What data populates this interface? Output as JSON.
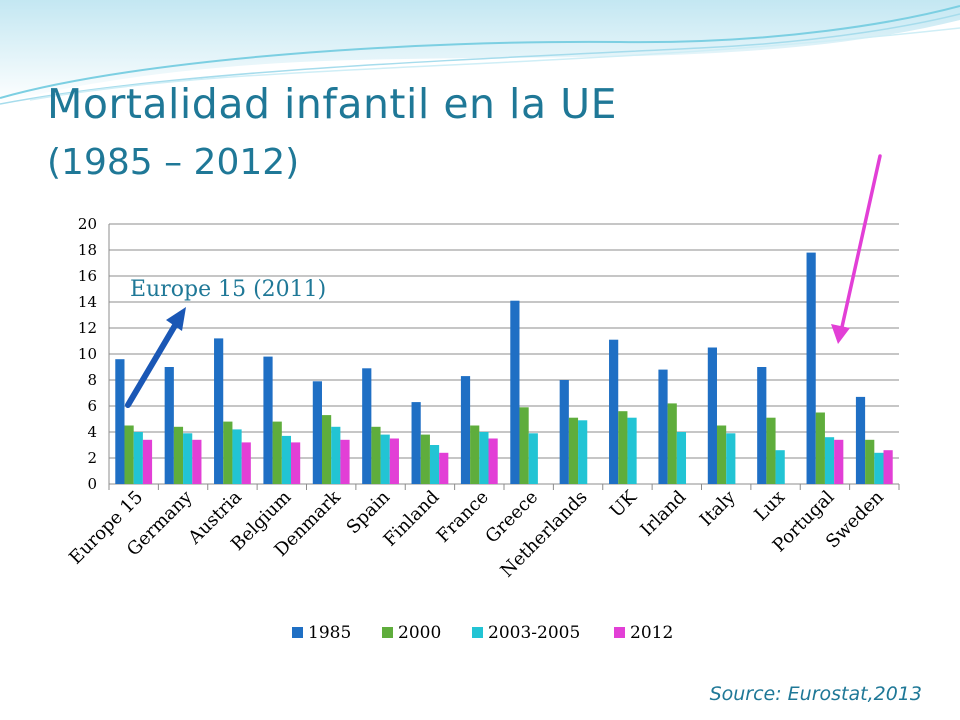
{
  "slide": {
    "title": "Mortalidad infantil  en la UE",
    "subtitle": "(1985 – 2012)",
    "source": "Source: Eurostat,2013",
    "annotation": "Europe 15 (2011)"
  },
  "colors": {
    "title": "#1f7897",
    "series": [
      "#1f6fc4",
      "#5fad3c",
      "#22c4d4",
      "#e23fd6"
    ],
    "arrow_blue": "#1a57b5",
    "arrow_magenta": "#e23fd6"
  },
  "chart_data": {
    "type": "bar",
    "categories": [
      "Europe 15",
      "Germany",
      "Austria",
      "Belgium",
      "Denmark",
      "Spain",
      "Finland",
      "France",
      "Greece",
      "Netherlands",
      "UK",
      "Irland",
      "Italy",
      "Lux",
      "Portugal",
      "Sweden"
    ],
    "series": [
      {
        "name": "1985",
        "values": [
          9.6,
          9.0,
          11.2,
          9.8,
          7.9,
          8.9,
          6.3,
          8.3,
          14.1,
          8.0,
          11.1,
          8.8,
          10.5,
          9.0,
          17.8,
          6.7
        ]
      },
      {
        "name": "2000",
        "values": [
          4.5,
          4.4,
          4.8,
          4.8,
          5.3,
          4.4,
          3.8,
          4.5,
          5.9,
          5.1,
          5.6,
          6.2,
          4.5,
          5.1,
          5.5,
          3.4
        ]
      },
      {
        "name": "2003-2005",
        "values": [
          4.0,
          3.9,
          4.2,
          3.7,
          4.4,
          3.8,
          3.0,
          4.0,
          3.9,
          4.9,
          5.1,
          4.0,
          3.9,
          2.6,
          3.6,
          2.4
        ]
      },
      {
        "name": "2012",
        "values": [
          3.4,
          3.4,
          3.2,
          3.2,
          3.4,
          3.5,
          2.4,
          3.5,
          null,
          null,
          null,
          null,
          null,
          null,
          3.4,
          2.6
        ]
      }
    ],
    "ylim": [
      0,
      20
    ],
    "yticks": [
      0,
      2,
      4,
      6,
      8,
      10,
      12,
      14,
      16,
      18,
      20
    ],
    "xlabel": "",
    "ylabel": "",
    "grid": true,
    "legend": "bottom"
  }
}
